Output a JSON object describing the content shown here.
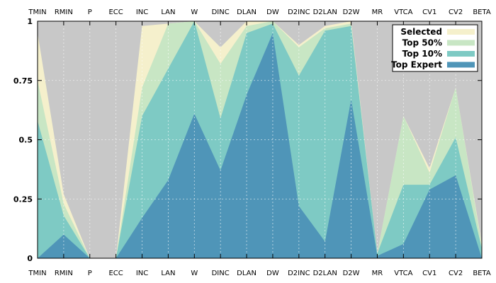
{
  "chart_data": {
    "type": "area",
    "categories": [
      "TMIN",
      "RMIN",
      "P",
      "ECC",
      "INC",
      "LAN",
      "W",
      "DINC",
      "DLAN",
      "DW",
      "D2INC",
      "D2LAN",
      "D2W",
      "MR",
      "VTCA",
      "CV1",
      "CV2",
      "BETA"
    ],
    "ylim": [
      0,
      1
    ],
    "yticks": [
      0,
      0.25,
      0.5,
      0.75,
      1
    ],
    "ytick_labels": [
      "0",
      "0.25",
      "0.5",
      "0.75",
      "1"
    ],
    "grid": true,
    "legend_position": "top-right",
    "background_color": "#c8c8c8",
    "series": [
      {
        "name": "Selected",
        "color": "#f5f0cc",
        "values": [
          0.95,
          0.27,
          0.0,
          0.0,
          0.98,
          0.99,
          1.0,
          0.89,
          1.0,
          1.0,
          0.9,
          0.98,
          1.0,
          0.02,
          0.6,
          0.38,
          0.72,
          0.06
        ]
      },
      {
        "name": "Top 50%",
        "color": "#c8e6c4",
        "values": [
          0.75,
          0.23,
          0.0,
          0.0,
          0.72,
          0.99,
          1.0,
          0.82,
          0.98,
          1.0,
          0.89,
          0.97,
          0.99,
          0.02,
          0.6,
          0.36,
          0.72,
          0.05
        ]
      },
      {
        "name": "Top 10%",
        "color": "#7ecac4",
        "values": [
          0.58,
          0.18,
          0.0,
          0.0,
          0.6,
          0.8,
          1.0,
          0.59,
          0.95,
          0.99,
          0.77,
          0.96,
          0.98,
          0.02,
          0.31,
          0.31,
          0.51,
          0.04
        ]
      },
      {
        "name": "Top Expert",
        "color": "#4f95b8",
        "values": [
          0.0,
          0.1,
          0.0,
          0.0,
          0.17,
          0.33,
          0.61,
          0.37,
          0.69,
          0.95,
          0.22,
          0.07,
          0.67,
          0.01,
          0.06,
          0.29,
          0.35,
          0.0
        ]
      }
    ]
  }
}
